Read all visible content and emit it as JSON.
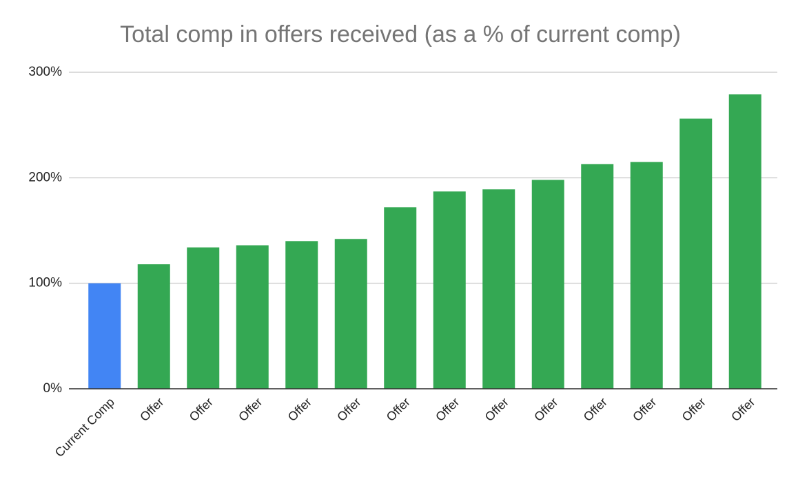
{
  "chart_data": {
    "type": "bar",
    "title": "Total comp in offers received (as a % of current comp)",
    "categories": [
      "Current Comp",
      "Offer",
      "Offer",
      "Offer",
      "Offer",
      "Offer",
      "Offer",
      "Offer",
      "Offer",
      "Offer",
      "Offer",
      "Offer",
      "Offer",
      "Offer"
    ],
    "values": [
      100,
      118,
      134,
      136,
      140,
      142,
      172,
      187,
      189,
      198,
      213,
      215,
      256,
      279
    ],
    "colors": [
      "#4285f4",
      "#34a853",
      "#34a853",
      "#34a853",
      "#34a853",
      "#34a853",
      "#34a853",
      "#34a853",
      "#34a853",
      "#34a853",
      "#34a853",
      "#34a853",
      "#34a853",
      "#34a853"
    ],
    "ylim": [
      0,
      300
    ],
    "yticks": [
      {
        "value": 0,
        "label": "0%"
      },
      {
        "value": 100,
        "label": "100%"
      },
      {
        "value": 200,
        "label": "200%"
      },
      {
        "value": 300,
        "label": "300%"
      }
    ],
    "grid": true
  }
}
